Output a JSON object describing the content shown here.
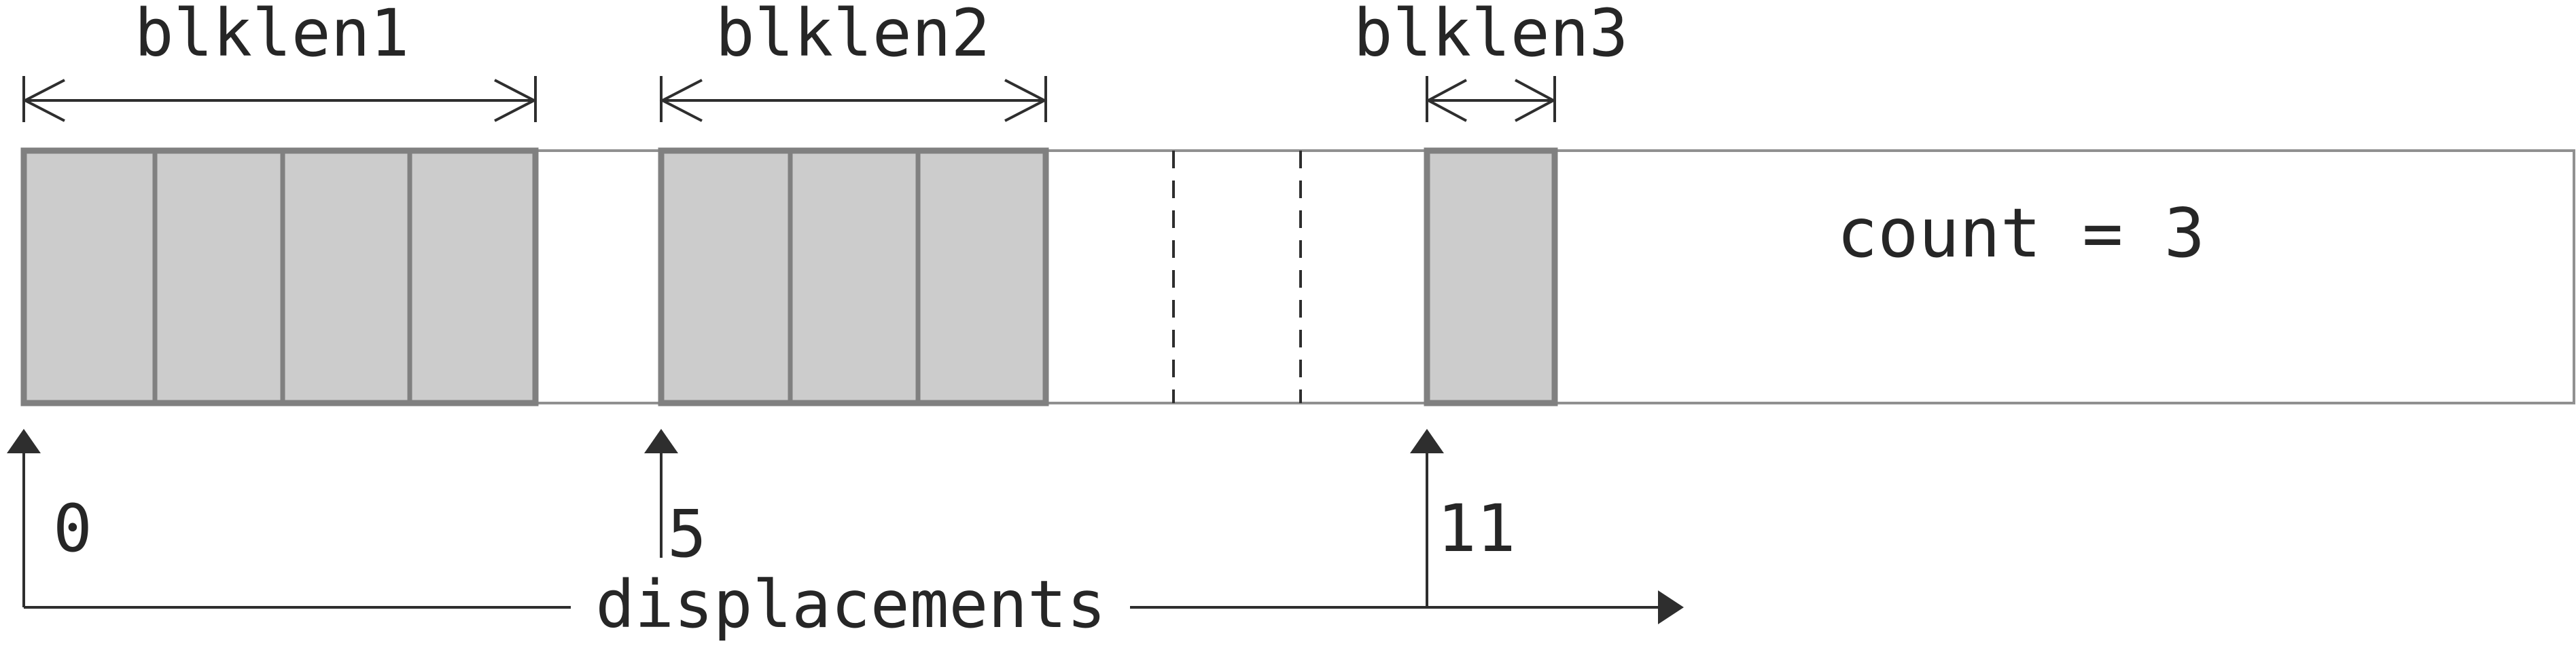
{
  "blocks": [
    {
      "label": "blklen1",
      "length": 4,
      "displacement": "0"
    },
    {
      "label": "blklen2",
      "length": 3,
      "displacement": "5"
    },
    {
      "label": "blklen3",
      "length": 1,
      "displacement": "11"
    }
  ],
  "count_text": "count = 3",
  "axis_label": "displacements",
  "colors": {
    "block_fill": "#cccccc",
    "block_stroke": "#808080",
    "line": "#2e2e2e",
    "text": "#262626"
  }
}
